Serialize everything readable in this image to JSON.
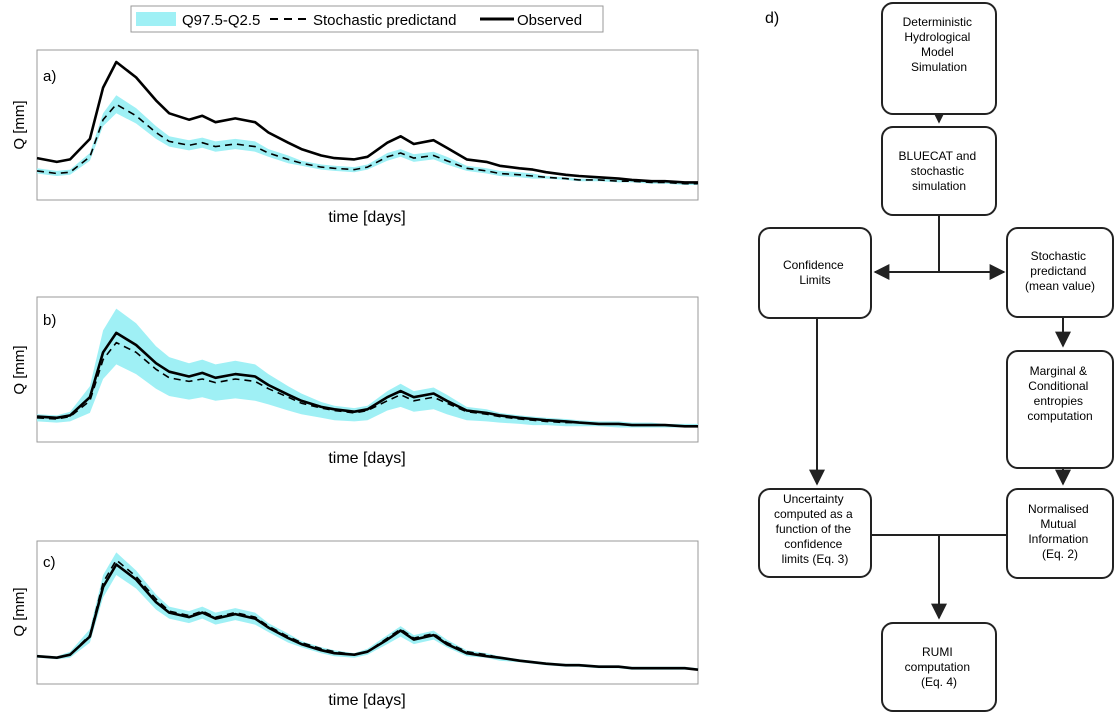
{
  "legend": {
    "band_label": "Q97.5-Q2.5",
    "dashed_label": "Stochastic predictand",
    "solid_label": "Observed"
  },
  "colors": {
    "band": "#9ff0f5",
    "line": "#000000",
    "frame": "#999999"
  },
  "chart_data": [
    {
      "type": "line",
      "panel_label": "a)",
      "xlabel": "time [days]",
      "ylabel": "Q [mm]",
      "x": [
        0,
        3,
        5,
        8,
        10,
        12,
        15,
        18,
        20,
        23,
        25,
        27,
        30,
        33,
        35,
        38,
        40,
        43,
        45,
        48,
        50,
        53,
        55,
        57,
        60,
        62,
        65,
        68,
        70,
        73,
        75,
        77,
        80,
        82,
        85,
        88,
        90,
        93,
        95,
        98,
        100
      ],
      "series": [
        {
          "name": "Observed",
          "style": "solid",
          "values": [
            0.25,
            0.22,
            0.24,
            0.4,
            0.8,
            1.0,
            0.88,
            0.7,
            0.6,
            0.55,
            0.58,
            0.53,
            0.56,
            0.53,
            0.45,
            0.37,
            0.32,
            0.27,
            0.25,
            0.24,
            0.26,
            0.37,
            0.42,
            0.36,
            0.39,
            0.33,
            0.24,
            0.22,
            0.19,
            0.17,
            0.16,
            0.14,
            0.12,
            0.11,
            0.1,
            0.09,
            0.08,
            0.07,
            0.07,
            0.06,
            0.06
          ]
        },
        {
          "name": "Stochastic predictand",
          "style": "dashed",
          "values": [
            0.15,
            0.13,
            0.14,
            0.26,
            0.55,
            0.67,
            0.58,
            0.45,
            0.38,
            0.35,
            0.37,
            0.34,
            0.36,
            0.34,
            0.29,
            0.24,
            0.21,
            0.18,
            0.17,
            0.16,
            0.18,
            0.26,
            0.29,
            0.25,
            0.27,
            0.23,
            0.17,
            0.15,
            0.13,
            0.12,
            0.11,
            0.1,
            0.09,
            0.08,
            0.08,
            0.07,
            0.07,
            0.06,
            0.06,
            0.05,
            0.05
          ]
        },
        {
          "name": "Q97.5-Q2.5",
          "style": "band",
          "upper": [
            0.17,
            0.15,
            0.16,
            0.29,
            0.6,
            0.74,
            0.64,
            0.5,
            0.42,
            0.39,
            0.41,
            0.38,
            0.4,
            0.38,
            0.32,
            0.27,
            0.23,
            0.2,
            0.19,
            0.18,
            0.2,
            0.29,
            0.32,
            0.28,
            0.3,
            0.26,
            0.19,
            0.17,
            0.15,
            0.14,
            0.13,
            0.11,
            0.1,
            0.09,
            0.09,
            0.08,
            0.08,
            0.07,
            0.07,
            0.06,
            0.06
          ],
          "lower": [
            0.13,
            0.11,
            0.12,
            0.23,
            0.5,
            0.6,
            0.52,
            0.4,
            0.34,
            0.31,
            0.33,
            0.3,
            0.32,
            0.3,
            0.26,
            0.21,
            0.19,
            0.16,
            0.15,
            0.14,
            0.16,
            0.23,
            0.26,
            0.22,
            0.24,
            0.2,
            0.15,
            0.13,
            0.11,
            0.1,
            0.09,
            0.09,
            0.08,
            0.07,
            0.07,
            0.06,
            0.06,
            0.05,
            0.05,
            0.04,
            0.04
          ]
        }
      ]
    },
    {
      "type": "line",
      "panel_label": "b)",
      "xlabel": "time [days]",
      "ylabel": "Q [mm]",
      "x": [
        0,
        3,
        5,
        8,
        10,
        12,
        15,
        18,
        20,
        23,
        25,
        27,
        30,
        33,
        35,
        38,
        40,
        43,
        45,
        48,
        50,
        53,
        55,
        57,
        60,
        62,
        65,
        68,
        70,
        73,
        75,
        77,
        80,
        82,
        85,
        88,
        90,
        93,
        95,
        98,
        100
      ],
      "series": [
        {
          "name": "Observed",
          "style": "solid",
          "values": [
            0.09,
            0.08,
            0.1,
            0.25,
            0.62,
            0.78,
            0.68,
            0.53,
            0.46,
            0.42,
            0.45,
            0.41,
            0.44,
            0.42,
            0.35,
            0.27,
            0.22,
            0.17,
            0.15,
            0.13,
            0.15,
            0.25,
            0.3,
            0.25,
            0.28,
            0.22,
            0.14,
            0.12,
            0.1,
            0.08,
            0.07,
            0.06,
            0.05,
            0.04,
            0.03,
            0.03,
            0.02,
            0.02,
            0.02,
            0.01,
            0.01
          ]
        },
        {
          "name": "Stochastic predictand",
          "style": "dashed",
          "values": [
            0.08,
            0.07,
            0.09,
            0.22,
            0.56,
            0.7,
            0.62,
            0.48,
            0.41,
            0.38,
            0.4,
            0.37,
            0.4,
            0.38,
            0.32,
            0.25,
            0.2,
            0.16,
            0.14,
            0.12,
            0.14,
            0.22,
            0.27,
            0.22,
            0.25,
            0.2,
            0.13,
            0.11,
            0.09,
            0.07,
            0.06,
            0.05,
            0.04,
            0.04,
            0.03,
            0.03,
            0.02,
            0.02,
            0.02,
            0.01,
            0.01
          ]
        },
        {
          "name": "Q97.5-Q2.5",
          "style": "band",
          "upper": [
            0.11,
            0.1,
            0.13,
            0.34,
            0.8,
            0.98,
            0.86,
            0.67,
            0.58,
            0.53,
            0.56,
            0.52,
            0.55,
            0.52,
            0.44,
            0.34,
            0.28,
            0.21,
            0.18,
            0.16,
            0.18,
            0.3,
            0.36,
            0.3,
            0.33,
            0.27,
            0.17,
            0.15,
            0.12,
            0.1,
            0.09,
            0.08,
            0.07,
            0.06,
            0.05,
            0.05,
            0.04,
            0.04,
            0.03,
            0.03,
            0.03
          ]
        },
        {
          "name": "Q97.5-Q2.5 lower",
          "style": "band-lower",
          "values": [
            0.05,
            0.04,
            0.05,
            0.12,
            0.4,
            0.52,
            0.44,
            0.32,
            0.26,
            0.23,
            0.25,
            0.22,
            0.24,
            0.22,
            0.19,
            0.14,
            0.11,
            0.08,
            0.06,
            0.05,
            0.06,
            0.14,
            0.17,
            0.13,
            0.15,
            0.11,
            0.06,
            0.05,
            0.04,
            0.03,
            0.02,
            0.02,
            0.01,
            0.01,
            0.01,
            0.0,
            0.0,
            0.0,
            0.0,
            0.0,
            0.0
          ]
        }
      ]
    },
    {
      "type": "line",
      "panel_label": "c)",
      "xlabel": "time [days]",
      "ylabel": "Q [mm]",
      "x": [
        0,
        3,
        5,
        8,
        10,
        12,
        15,
        18,
        20,
        23,
        25,
        27,
        30,
        33,
        35,
        38,
        40,
        43,
        45,
        48,
        50,
        53,
        55,
        57,
        60,
        62,
        65,
        68,
        70,
        73,
        75,
        77,
        80,
        82,
        85,
        88,
        90,
        93,
        95,
        98,
        100
      ],
      "series": [
        {
          "name": "Observed",
          "style": "solid",
          "values": [
            0.09,
            0.08,
            0.1,
            0.22,
            0.55,
            0.7,
            0.6,
            0.45,
            0.38,
            0.35,
            0.38,
            0.34,
            0.37,
            0.34,
            0.28,
            0.21,
            0.17,
            0.13,
            0.11,
            0.1,
            0.12,
            0.2,
            0.26,
            0.2,
            0.23,
            0.17,
            0.11,
            0.09,
            0.08,
            0.06,
            0.05,
            0.04,
            0.03,
            0.03,
            0.02,
            0.02,
            0.01,
            0.01,
            0.01,
            0.01,
            0.0
          ]
        },
        {
          "name": "Stochastic predictand",
          "style": "dashed",
          "values": [
            0.09,
            0.08,
            0.1,
            0.23,
            0.58,
            0.73,
            0.62,
            0.47,
            0.39,
            0.36,
            0.39,
            0.35,
            0.38,
            0.35,
            0.29,
            0.22,
            0.18,
            0.14,
            0.12,
            0.1,
            0.12,
            0.21,
            0.27,
            0.21,
            0.24,
            0.18,
            0.12,
            0.1,
            0.08,
            0.06,
            0.05,
            0.04,
            0.03,
            0.03,
            0.02,
            0.02,
            0.01,
            0.01,
            0.01,
            0.01,
            0.0
          ]
        },
        {
          "name": "Q97.5-Q2.5",
          "style": "band",
          "upper": [
            0.1,
            0.09,
            0.12,
            0.27,
            0.63,
            0.78,
            0.66,
            0.5,
            0.42,
            0.39,
            0.42,
            0.38,
            0.41,
            0.38,
            0.31,
            0.24,
            0.19,
            0.15,
            0.13,
            0.11,
            0.14,
            0.23,
            0.29,
            0.23,
            0.26,
            0.2,
            0.13,
            0.11,
            0.09,
            0.07,
            0.06,
            0.05,
            0.04,
            0.04,
            0.03,
            0.03,
            0.02,
            0.02,
            0.02,
            0.02,
            0.01
          ]
        },
        {
          "name": "Q97.5-Q2.5 lower",
          "style": "band-lower",
          "values": [
            0.08,
            0.07,
            0.08,
            0.18,
            0.48,
            0.63,
            0.54,
            0.4,
            0.34,
            0.31,
            0.34,
            0.3,
            0.33,
            0.3,
            0.25,
            0.18,
            0.15,
            0.11,
            0.09,
            0.08,
            0.1,
            0.17,
            0.22,
            0.17,
            0.2,
            0.15,
            0.09,
            0.08,
            0.06,
            0.05,
            0.04,
            0.03,
            0.02,
            0.02,
            0.01,
            0.01,
            0.0,
            0.0,
            0.0,
            0.0,
            0.0
          ]
        }
      ]
    }
  ],
  "flowchart": {
    "label": "d)",
    "boxes": {
      "deterministic": [
        "Deterministic",
        "Hydrological",
        "Model",
        "Simulation"
      ],
      "bluecat": [
        "BLUECAT and",
        "stochastic",
        "simulation"
      ],
      "confidence": [
        "Confidence",
        "Limits"
      ],
      "stochastic": [
        "Stochastic",
        "predictand",
        "(mean value)"
      ],
      "entropies": [
        "Marginal &",
        "Conditional",
        "entropies",
        "computation"
      ],
      "uncertainty": [
        "Uncertainty",
        "computed as a",
        "function of the",
        "confidence",
        "limits (Eq. 3)"
      ],
      "nmi": [
        "Normalised",
        "Mutual",
        "Information",
        "(Eq. 2)"
      ],
      "rumi": [
        "RUMI",
        "computation",
        "(Eq. 4)"
      ]
    }
  }
}
